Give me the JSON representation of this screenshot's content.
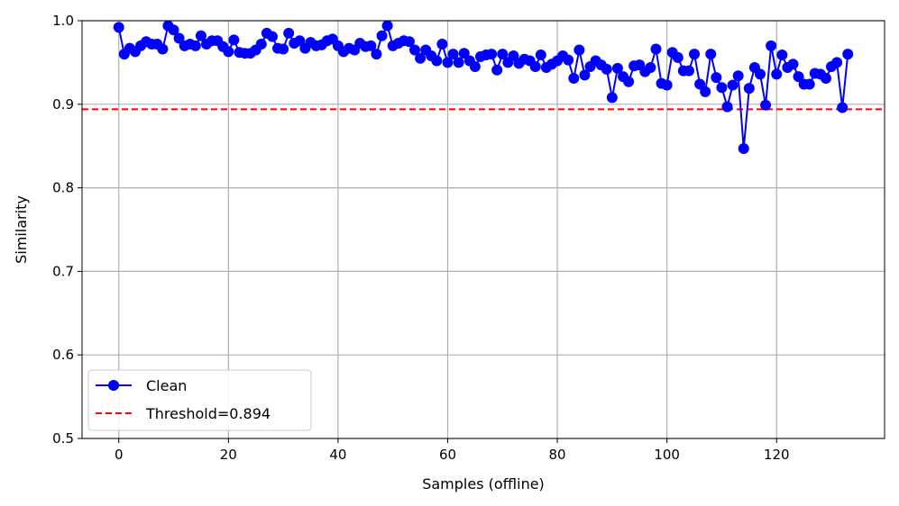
{
  "chart_data": {
    "type": "line",
    "title": "",
    "xlabel": "Samples (offline)",
    "ylabel": "Similarity",
    "xlim": [
      -6.7,
      139.7
    ],
    "ylim": [
      0.5,
      1.0
    ],
    "xticks": [
      0,
      20,
      40,
      60,
      80,
      100,
      120
    ],
    "yticks": [
      0.5,
      0.6,
      0.7,
      0.8,
      0.9,
      1.0
    ],
    "ytick_labels": [
      "0.5",
      "0.6",
      "0.7",
      "0.8",
      "0.9",
      "1.0"
    ],
    "grid": true,
    "legend_position": "lower-left",
    "series": [
      {
        "name": "Clean",
        "color": "#0000ff",
        "marker": "circle",
        "x": [
          0,
          1,
          2,
          3,
          4,
          5,
          6,
          7,
          8,
          9,
          10,
          11,
          12,
          13,
          14,
          15,
          16,
          17,
          18,
          19,
          20,
          21,
          22,
          23,
          24,
          25,
          26,
          27,
          28,
          29,
          30,
          31,
          32,
          33,
          34,
          35,
          36,
          37,
          38,
          39,
          40,
          41,
          42,
          43,
          44,
          45,
          46,
          47,
          48,
          49,
          50,
          51,
          52,
          53,
          54,
          55,
          56,
          57,
          58,
          59,
          60,
          61,
          62,
          63,
          64,
          65,
          66,
          67,
          68,
          69,
          70,
          71,
          72,
          73,
          74,
          75,
          76,
          77,
          78,
          79,
          80,
          81,
          82,
          83,
          84,
          85,
          86,
          87,
          88,
          89,
          90,
          91,
          92,
          93,
          94,
          95,
          96,
          97,
          98,
          99,
          100,
          101,
          102,
          103,
          104,
          105,
          106,
          107,
          108,
          109,
          110,
          111,
          112,
          113,
          114,
          115,
          116,
          117,
          118,
          119,
          120,
          121,
          122,
          123,
          124,
          125,
          126,
          127,
          128,
          129,
          130,
          131,
          132,
          133
        ],
        "y": [
          0.992,
          0.96,
          0.967,
          0.963,
          0.97,
          0.975,
          0.972,
          0.972,
          0.966,
          0.994,
          0.989,
          0.979,
          0.97,
          0.972,
          0.97,
          0.982,
          0.972,
          0.976,
          0.976,
          0.969,
          0.963,
          0.977,
          0.962,
          0.961,
          0.961,
          0.965,
          0.972,
          0.985,
          0.981,
          0.967,
          0.966,
          0.985,
          0.973,
          0.976,
          0.967,
          0.974,
          0.97,
          0.971,
          0.976,
          0.978,
          0.97,
          0.963,
          0.967,
          0.965,
          0.973,
          0.969,
          0.97,
          0.96,
          0.982,
          0.994,
          0.97,
          0.973,
          0.976,
          0.975,
          0.965,
          0.955,
          0.965,
          0.958,
          0.952,
          0.972,
          0.95,
          0.96,
          0.95,
          0.961,
          0.952,
          0.945,
          0.957,
          0.959,
          0.96,
          0.941,
          0.96,
          0.95,
          0.958,
          0.949,
          0.954,
          0.952,
          0.945,
          0.959,
          0.944,
          0.948,
          0.952,
          0.958,
          0.953,
          0.931,
          0.965,
          0.935,
          0.945,
          0.952,
          0.947,
          0.942,
          0.908,
          0.943,
          0.933,
          0.927,
          0.946,
          0.947,
          0.939,
          0.944,
          0.966,
          0.925,
          0.923,
          0.962,
          0.956,
          0.94,
          0.94,
          0.96,
          0.924,
          0.915,
          0.96,
          0.932,
          0.92,
          0.897,
          0.923,
          0.934,
          0.847,
          0.919,
          0.944,
          0.936,
          0.899,
          0.97,
          0.936,
          0.959,
          0.944,
          0.948,
          0.933,
          0.924,
          0.924,
          0.937,
          0.936,
          0.931,
          0.945,
          0.95,
          0.896,
          0.96
        ]
      }
    ],
    "threshold": {
      "name": "Threshold=0.894",
      "value": 0.894,
      "color": "#ff0000",
      "style": "dashed"
    }
  }
}
